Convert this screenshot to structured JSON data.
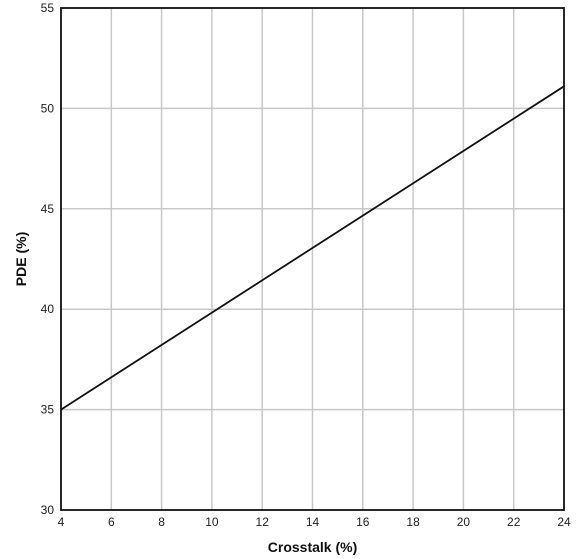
{
  "chart_data": {
    "type": "line",
    "title": "",
    "xlabel": "Crosstalk (%)",
    "ylabel": "PDE (%)",
    "xlim": [
      4,
      24
    ],
    "ylim": [
      30,
      55
    ],
    "xticks": [
      4,
      6,
      8,
      10,
      12,
      14,
      16,
      18,
      20,
      22,
      24
    ],
    "yticks": [
      30,
      35,
      40,
      45,
      50,
      55
    ],
    "grid": true,
    "legend": "none",
    "colors": {
      "line": "#111111",
      "grid": "#c8c8c8",
      "frame": "#111111"
    },
    "series": [
      {
        "x": [
          4,
          24
        ],
        "y": [
          35.0,
          51.1
        ]
      }
    ]
  }
}
